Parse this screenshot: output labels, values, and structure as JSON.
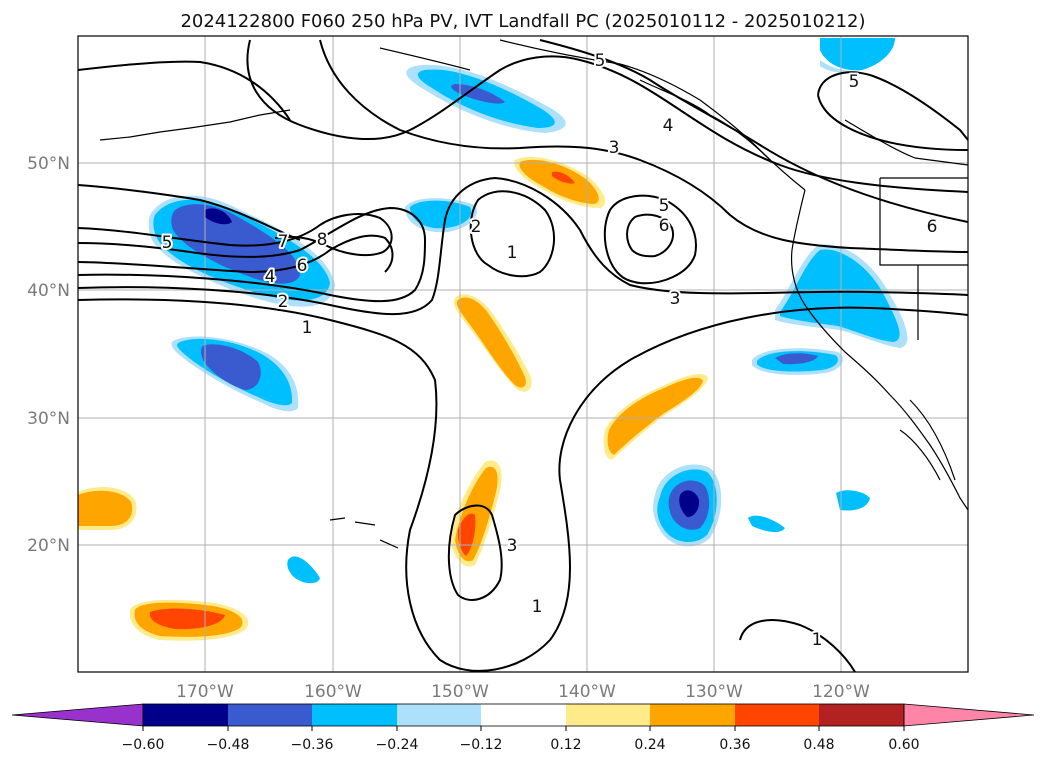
{
  "title": "2024122800 F060 250 hPa PV, IVT Landfall PC (2025010112 - 2025010212)",
  "map": {
    "lon_range": [
      -180,
      -110
    ],
    "lat_range": [
      10,
      60
    ],
    "lon_labels": [
      "170°W",
      "160°W",
      "150°W",
      "140°W",
      "130°W",
      "120°W"
    ],
    "lat_labels": [
      "50°N",
      "40°N",
      "30°N",
      "20°N"
    ],
    "grid": true,
    "gridline_color": "#b0b0b0",
    "coastline_color": "#000000"
  },
  "colorbar": {
    "orientation": "horizontal",
    "extend": "both",
    "levels": [
      -0.6,
      -0.48,
      -0.36,
      -0.24,
      -0.12,
      0.12,
      0.24,
      0.36,
      0.48,
      0.6
    ],
    "tick_labels": [
      "−0.60",
      "−0.48",
      "−0.36",
      "−0.24",
      "−0.12",
      "0.12",
      "0.24",
      "0.36",
      "0.48",
      "0.60"
    ],
    "colors": [
      "#9932cc",
      "#00008b",
      "#3a5bd0",
      "#00bfff",
      "#ade0fa",
      "#ffffff",
      "#ffeb8a",
      "#ffa500",
      "#ff4500",
      "#b22222",
      "#ff85a8"
    ]
  },
  "contours": {
    "field": "250 hPa PV",
    "color": "#000000",
    "labels": [
      "1",
      "2",
      "4",
      "6",
      "7",
      "8",
      "5",
      "2",
      "1",
      "5",
      "6",
      "3",
      "3",
      "4",
      "5",
      "5",
      "6",
      "3",
      "1",
      "1"
    ]
  }
}
